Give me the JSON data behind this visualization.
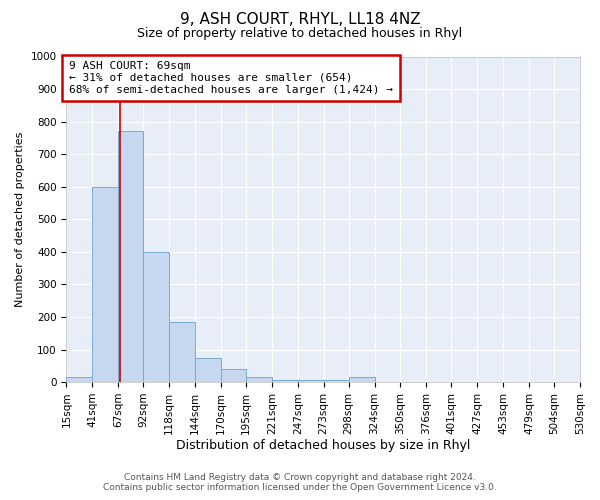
{
  "title": "9, ASH COURT, RHYL, LL18 4NZ",
  "subtitle": "Size of property relative to detached houses in Rhyl",
  "xlabel": "Distribution of detached houses by size in Rhyl",
  "ylabel": "Number of detached properties",
  "footer_line1": "Contains HM Land Registry data © Crown copyright and database right 2024.",
  "footer_line2": "Contains public sector information licensed under the Open Government Licence v3.0.",
  "annotation_line1": "9 ASH COURT: 69sqm",
  "annotation_line2": "← 31% of detached houses are smaller (654)",
  "annotation_line3": "68% of semi-detached houses are larger (1,424) →",
  "property_size": 69,
  "bar_color": "#c5d8f0",
  "bar_edge_color": "#7aaad0",
  "vline_color": "#cc0000",
  "annotation_box_edgecolor": "#cc0000",
  "plot_bg_color": "#e8eef8",
  "ylim": [
    0,
    1000
  ],
  "yticks": [
    0,
    100,
    200,
    300,
    400,
    500,
    600,
    700,
    800,
    900,
    1000
  ],
  "bin_edges": [
    15,
    41,
    67,
    92,
    118,
    144,
    170,
    195,
    221,
    247,
    273,
    298,
    324,
    350,
    376,
    401,
    427,
    453,
    479,
    504,
    530
  ],
  "bar_heights": [
    15,
    600,
    770,
    400,
    185,
    75,
    40,
    15,
    5,
    5,
    5,
    15,
    0,
    0,
    0,
    0,
    0,
    0,
    0,
    0
  ],
  "title_fontsize": 11,
  "subtitle_fontsize": 9,
  "tick_fontsize": 7.5,
  "ylabel_fontsize": 8,
  "xlabel_fontsize": 9,
  "annotation_fontsize": 8,
  "footer_fontsize": 6.5
}
